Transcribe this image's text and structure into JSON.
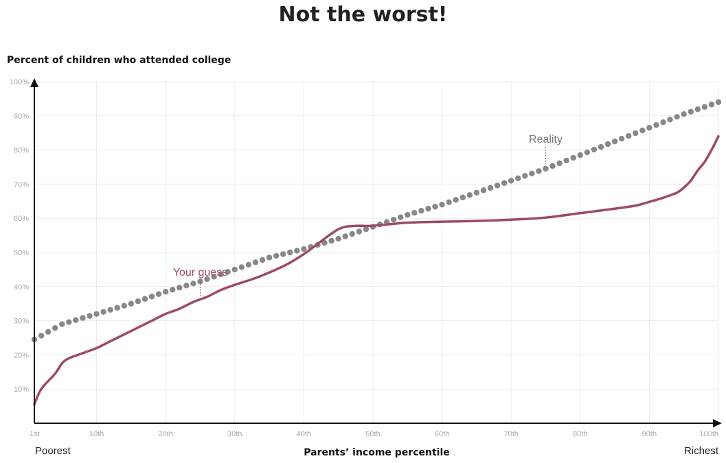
{
  "chart_data": {
    "type": "line",
    "title": "Not the worst!",
    "ylabel": "Percent of children who attended college",
    "xlabel": "Parents’ income percentile",
    "x_tick_labels": [
      "1st",
      "10th",
      "20th",
      "30th",
      "40th",
      "50th",
      "60th",
      "70th",
      "80th",
      "90th",
      "100th"
    ],
    "x_tick_values": [
      1,
      10,
      20,
      30,
      40,
      50,
      60,
      70,
      80,
      90,
      100
    ],
    "y_tick_labels": [
      "10%",
      "20%",
      "30%",
      "40%",
      "50%",
      "60%",
      "70%",
      "80%",
      "90%",
      "100%"
    ],
    "y_tick_values": [
      10,
      20,
      30,
      40,
      50,
      60,
      70,
      80,
      90,
      100
    ],
    "xlim": [
      1,
      100
    ],
    "ylim": [
      0,
      100
    ],
    "grid": true,
    "x_end_labels": {
      "left": "Poorest",
      "right": "Richest"
    },
    "series": [
      {
        "name": "Reality",
        "style": "dotted",
        "color": "#888888",
        "annotation_x": 75,
        "x": [
          1,
          5,
          10,
          15,
          20,
          25,
          30,
          35,
          40,
          45,
          50,
          55,
          60,
          65,
          70,
          75,
          80,
          85,
          90,
          95,
          100
        ],
        "y": [
          24.5,
          29,
          32,
          35,
          38.5,
          41.5,
          45,
          48.5,
          51,
          54,
          57.5,
          61,
          64,
          67.5,
          71,
          74.5,
          78.5,
          82.5,
          86.5,
          90.5,
          94
        ]
      },
      {
        "name": "Your guess",
        "style": "solid",
        "color": "#9e4a62",
        "annotation_x": 25,
        "x": [
          1,
          2,
          4,
          5,
          6,
          8,
          10,
          12,
          14,
          16,
          18,
          20,
          22,
          24,
          26,
          28,
          30,
          33,
          36,
          38,
          40,
          42,
          44,
          45,
          46,
          47,
          48,
          50,
          55,
          60,
          65,
          70,
          75,
          80,
          85,
          88,
          90,
          92,
          94,
          95,
          96,
          97,
          98,
          99,
          100
        ],
        "y": [
          5.5,
          10,
          14.5,
          17.5,
          19,
          20.5,
          22,
          24,
          26,
          28,
          30,
          32,
          33.5,
          35.5,
          37,
          39,
          40.5,
          42.5,
          45,
          47,
          49.5,
          52.5,
          55.5,
          56.8,
          57.5,
          57.7,
          57.8,
          57.8,
          58.7,
          59,
          59.2,
          59.6,
          60.2,
          61.5,
          62.8,
          63.7,
          64.8,
          66,
          67.5,
          69,
          71,
          74,
          76.5,
          80,
          84
        ]
      }
    ]
  }
}
